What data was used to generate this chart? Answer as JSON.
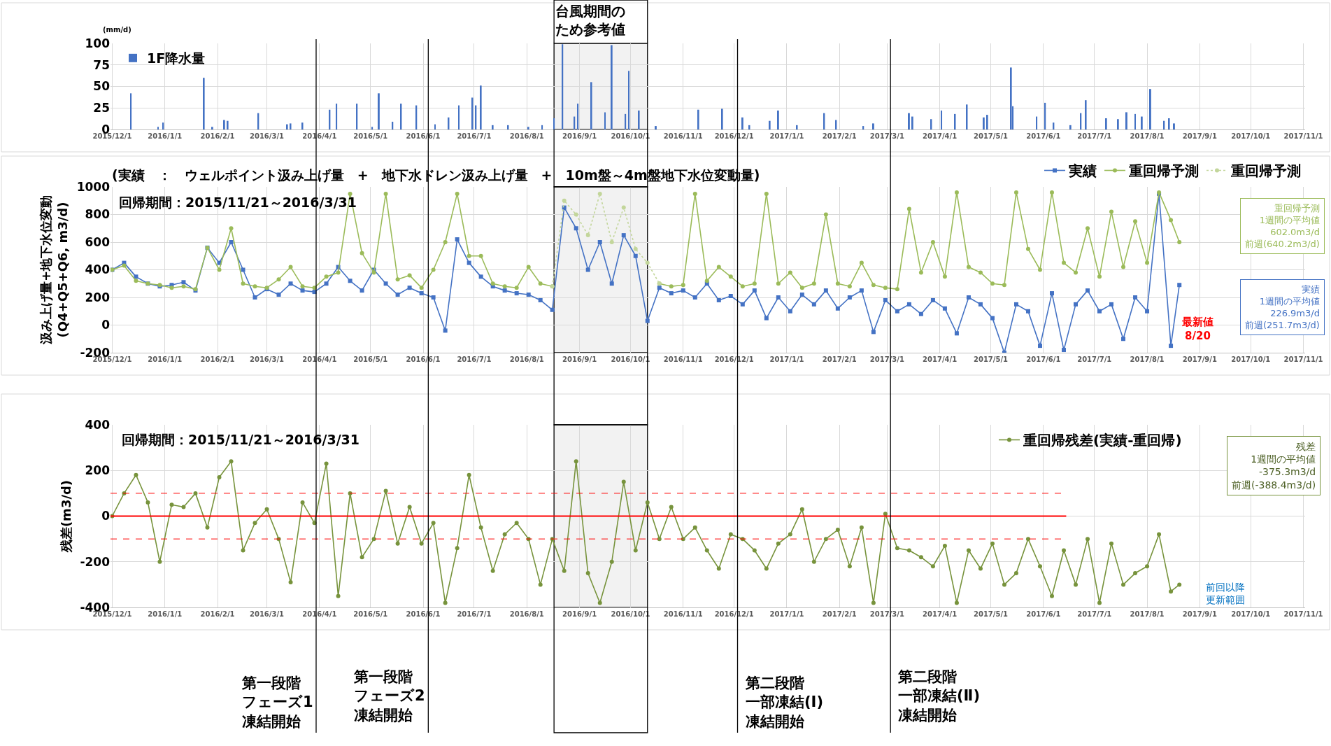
{
  "chart_data": [
    {
      "type": "bar",
      "ylabel": "(mm/d)",
      "xlim": [
        "2015-11-30",
        "2017-11-02"
      ],
      "ylim": [
        0,
        100
      ],
      "yticks": [
        0,
        25,
        50,
        75,
        100
      ],
      "grid": true,
      "legend": "top left",
      "xticks": [
        {
          "value": "2015-12-01",
          "label": "2015/12/1"
        },
        {
          "value": "2016-01-01",
          "label": "2016/1/1"
        },
        {
          "value": "2016-02-01",
          "label": "2016/2/1"
        },
        {
          "value": "2016-03-01",
          "label": "2016/3/1"
        },
        {
          "value": "2016-04-01",
          "label": "2016/4/1"
        },
        {
          "value": "2016-05-01",
          "label": "2016/5/1"
        },
        {
          "value": "2016-06-01",
          "label": "2016/6/1"
        },
        {
          "value": "2016-07-01",
          "label": "2016/7/1"
        },
        {
          "value": "2016-08-01",
          "label": "2016/8/1"
        },
        {
          "value": "2016-09-01",
          "label": "2016/9/1"
        },
        {
          "value": "2016-10-01",
          "label": "2016/10/1"
        },
        {
          "value": "2016-11-01",
          "label": "2016/11/1"
        },
        {
          "value": "2016-12-01",
          "label": "2016/12/1"
        },
        {
          "value": "2017-01-01",
          "label": "2017/1/1"
        },
        {
          "value": "2017-02-01",
          "label": "2017/2/1"
        },
        {
          "value": "2017-03-01",
          "label": "2017/3/1"
        },
        {
          "value": "2017-04-01",
          "label": "2017/4/1"
        },
        {
          "value": "2017-05-01",
          "label": "2017/5/1"
        },
        {
          "value": "2017-06-01",
          "label": "2017/6/1"
        },
        {
          "value": "2017-07-01",
          "label": "2017/7/1"
        },
        {
          "value": "2017-08-01",
          "label": "2017/8/1"
        },
        {
          "value": "2017-09-01",
          "label": "2017/9/1"
        },
        {
          "value": "2017-10-01",
          "label": "2017/10/1"
        },
        {
          "value": "2017-11-01",
          "label": "2017/11/1"
        }
      ],
      "series": [
        {
          "name": "1F降水量",
          "color": "#4472c4",
          "x": [
            "2015-12-12",
            "2015-12-28",
            "2015-12-31",
            "2016-01-24",
            "2016-01-29",
            "2016-02-05",
            "2016-02-07",
            "2016-02-25",
            "2016-03-13",
            "2016-03-15",
            "2016-03-22",
            "2016-04-07",
            "2016-04-11",
            "2016-04-23",
            "2016-05-02",
            "2016-05-06",
            "2016-05-14",
            "2016-05-19",
            "2016-05-28",
            "2016-06-08",
            "2016-06-16",
            "2016-06-22",
            "2016-06-30",
            "2016-07-02",
            "2016-07-05",
            "2016-07-12",
            "2016-07-21",
            "2016-08-02",
            "2016-08-10",
            "2016-08-17",
            "2016-08-22",
            "2016-08-29",
            "2016-08-31",
            "2016-09-08",
            "2016-09-16",
            "2016-09-20",
            "2016-09-28",
            "2016-09-30",
            "2016-10-06",
            "2016-10-16",
            "2016-11-10",
            "2016-11-24",
            "2016-12-06",
            "2016-12-10",
            "2016-12-22",
            "2016-12-27",
            "2017-01-07",
            "2017-01-23",
            "2017-01-30",
            "2017-02-15",
            "2017-02-21",
            "2017-03-14",
            "2017-03-16",
            "2017-03-27",
            "2017-04-02",
            "2017-04-10",
            "2017-04-17",
            "2017-04-27",
            "2017-04-29",
            "2017-05-13",
            "2017-05-14",
            "2017-05-28",
            "2017-06-02",
            "2017-06-07",
            "2017-06-17",
            "2017-06-23",
            "2017-06-26",
            "2017-07-08",
            "2017-07-15",
            "2017-07-20",
            "2017-07-25",
            "2017-07-29",
            "2017-08-03",
            "2017-08-11",
            "2017-08-14",
            "2017-08-17"
          ],
          "values": [
            42,
            3,
            8,
            60,
            3,
            11,
            10,
            19,
            6,
            7,
            8,
            23,
            30,
            30,
            3,
            42,
            9,
            30,
            28,
            6,
            14,
            28,
            37,
            28,
            51,
            5,
            5,
            3,
            5,
            13,
            99,
            15,
            30,
            55,
            20,
            98,
            18,
            68,
            22,
            4,
            23,
            24,
            14,
            5,
            10,
            22,
            5,
            19,
            11,
            4,
            7,
            19,
            15,
            12,
            22,
            18,
            29,
            14,
            17,
            72,
            27,
            15,
            31,
            8,
            5,
            19,
            34,
            13,
            12,
            20,
            18,
            15,
            47,
            10,
            13,
            7
          ]
        }
      ],
      "bands": [
        {
          "axis": "x",
          "from": "2016-08-17",
          "to": "2016-10-11",
          "label": "台風期間のため参考値",
          "color": "#000000"
        }
      ]
    },
    {
      "type": "line",
      "subtitle": "(実績　：　ウェルポイント汲み上げ量　+　地下水ドレン汲み上げ量　+　10m盤～4m盤地下水位変動量)",
      "ylabel": "汲み上げ量+地下水位変動\n(Q4+Q5+Q6, m3/d)",
      "xlim": [
        "2015-11-30",
        "2017-11-02"
      ],
      "ylim": [
        -200,
        1000
      ],
      "yticks": [
        -200,
        0,
        200,
        400,
        600,
        800,
        1000
      ],
      "grid": true,
      "legend": "top",
      "xticks": [
        {
          "value": "2015-12-01",
          "label": "2015/12/1"
        },
        {
          "value": "2016-01-01",
          "label": "2016/1/1"
        },
        {
          "value": "2016-02-01",
          "label": "2016/2/1"
        },
        {
          "value": "2016-03-01",
          "label": "2016/3/1"
        },
        {
          "value": "2016-04-01",
          "label": "2016/4/1"
        },
        {
          "value": "2016-05-01",
          "label": "2016/5/1"
        },
        {
          "value": "2016-06-01",
          "label": "2016/6/1"
        },
        {
          "value": "2016-07-01",
          "label": "2016/7/1"
        },
        {
          "value": "2016-08-01",
          "label": "2016/8/1"
        },
        {
          "value": "2016-09-01",
          "label": "2016/9/1"
        },
        {
          "value": "2016-10-01",
          "label": "2016/10/1"
        },
        {
          "value": "2016-11-01",
          "label": "2016/11/1"
        },
        {
          "value": "2016-12-01",
          "label": "2016/12/1"
        },
        {
          "value": "2017-01-01",
          "label": "2017/1/1"
        },
        {
          "value": "2017-02-01",
          "label": "2017/2/1"
        },
        {
          "value": "2017-03-01",
          "label": "2017/3/1"
        },
        {
          "value": "2017-04-01",
          "label": "2017/4/1"
        },
        {
          "value": "2017-05-01",
          "label": "2017/5/1"
        },
        {
          "value": "2017-06-01",
          "label": "2017/6/1"
        },
        {
          "value": "2017-07-01",
          "label": "2017/7/1"
        },
        {
          "value": "2017-08-01",
          "label": "2017/8/1"
        },
        {
          "value": "2017-09-01",
          "label": "2017/9/1"
        },
        {
          "value": "2017-10-01",
          "label": "2017/10/1"
        },
        {
          "value": "2017-11-01",
          "label": "2017/11/1"
        }
      ],
      "x": [
        "2015-12-01",
        "2015-12-08",
        "2015-12-15",
        "2015-12-22",
        "2015-12-29",
        "2016-01-05",
        "2016-01-12",
        "2016-01-19",
        "2016-01-26",
        "2016-02-02",
        "2016-02-09",
        "2016-02-16",
        "2016-02-23",
        "2016-03-01",
        "2016-03-08",
        "2016-03-15",
        "2016-03-22",
        "2016-03-29",
        "2016-04-05",
        "2016-04-12",
        "2016-04-19",
        "2016-04-26",
        "2016-05-03",
        "2016-05-10",
        "2016-05-17",
        "2016-05-24",
        "2016-05-31",
        "2016-06-07",
        "2016-06-14",
        "2016-06-21",
        "2016-06-28",
        "2016-07-05",
        "2016-07-12",
        "2016-07-19",
        "2016-07-26",
        "2016-08-02",
        "2016-08-09",
        "2016-08-16",
        "2016-08-23",
        "2016-08-30",
        "2016-09-06",
        "2016-09-13",
        "2016-09-20",
        "2016-09-27",
        "2016-10-04",
        "2016-10-11",
        "2016-10-18",
        "2016-10-25",
        "2016-11-01",
        "2016-11-08",
        "2016-11-15",
        "2016-11-22",
        "2016-11-29",
        "2016-12-06",
        "2016-12-13",
        "2016-12-20",
        "2016-12-27",
        "2017-01-03",
        "2017-01-10",
        "2017-01-17",
        "2017-01-24",
        "2017-01-31",
        "2017-02-07",
        "2017-02-14",
        "2017-02-21",
        "2017-02-28",
        "2017-03-07",
        "2017-03-14",
        "2017-03-21",
        "2017-03-28",
        "2017-04-04",
        "2017-04-11",
        "2017-04-18",
        "2017-04-25",
        "2017-05-02",
        "2017-05-09",
        "2017-05-16",
        "2017-05-23",
        "2017-05-30",
        "2017-06-06",
        "2017-06-13",
        "2017-06-20",
        "2017-06-27",
        "2017-07-04",
        "2017-07-11",
        "2017-07-18",
        "2017-07-25",
        "2017-08-01",
        "2017-08-08",
        "2017-08-15",
        "2017-08-20"
      ],
      "series": [
        {
          "name": "実績",
          "color": "#4472c4",
          "marker": "square",
          "values": [
            400,
            450,
            350,
            300,
            280,
            290,
            310,
            250,
            560,
            450,
            600,
            400,
            200,
            260,
            220,
            300,
            250,
            240,
            300,
            420,
            320,
            250,
            400,
            300,
            220,
            270,
            230,
            200,
            -40,
            620,
            450,
            350,
            280,
            250,
            230,
            220,
            180,
            110,
            850,
            700,
            400,
            600,
            300,
            650,
            500,
            30,
            270,
            230,
            250,
            200,
            300,
            180,
            210,
            150,
            250,
            50,
            200,
            100,
            220,
            150,
            250,
            120,
            200,
            250,
            -50,
            180,
            100,
            150,
            80,
            180,
            120,
            -60,
            200,
            150,
            50,
            -200,
            150,
            100,
            -150,
            230,
            -180,
            150,
            250,
            100,
            150,
            -100,
            200,
            100,
            950,
            -150,
            290
          ]
        },
        {
          "name": "重回帰予測",
          "color": "#9bbb59",
          "marker": "circle",
          "values": [
            400,
            430,
            320,
            300,
            290,
            270,
            280,
            260,
            560,
            400,
            700,
            300,
            280,
            270,
            330,
            420,
            280,
            270,
            350,
            380,
            950,
            520,
            380,
            950,
            330,
            360,
            270,
            400,
            600,
            950,
            500,
            500,
            300,
            280,
            270,
            420,
            300,
            280,
            null,
            null,
            null,
            null,
            null,
            null,
            null,
            null,
            300,
            280,
            290,
            950,
            320,
            420,
            350,
            280,
            300,
            950,
            300,
            380,
            270,
            300,
            800,
            300,
            280,
            450,
            290,
            270,
            260,
            840,
            380,
            600,
            350,
            960,
            420,
            380,
            300,
            290,
            960,
            550,
            400,
            960,
            450,
            380,
            700,
            350,
            820,
            420,
            750,
            450,
            960,
            760,
            600
          ]
        },
        {
          "name": "重回帰予測",
          "color": "#c3d69b",
          "marker": "circle",
          "line_style": "dotted",
          "x": [
            "2016-08-16",
            "2016-08-23",
            "2016-08-30",
            "2016-09-06",
            "2016-09-13",
            "2016-09-20",
            "2016-09-27",
            "2016-10-04",
            "2016-10-11",
            "2016-10-18"
          ],
          "values": [
            280,
            900,
            800,
            650,
            950,
            600,
            850,
            550,
            450,
            300
          ]
        }
      ],
      "annotations": [
        "回帰期間：2015/11/21～2016/3/31",
        "重回帰予測\n1週間の平均値\n602.0m3/d\n前週(640.2m3/d)",
        "実績\n1週間の平均値\n226.9m3/d\n前週(251.7m3/d)",
        "最新値\n8/20"
      ],
      "bands": [
        {
          "axis": "x",
          "from": "2016-08-17",
          "to": "2016-10-11",
          "color": "#000000"
        }
      ]
    },
    {
      "type": "line",
      "ylabel": "残差(m3/d)",
      "xlim": [
        "2015-11-30",
        "2017-11-02"
      ],
      "ylim": [
        -400,
        400
      ],
      "yticks": [
        -400,
        -200,
        0,
        200,
        400
      ],
      "grid": true,
      "legend": "top right",
      "xticks": [
        {
          "value": "2015-12-01",
          "label": "2015/12/1"
        },
        {
          "value": "2016-01-01",
          "label": "2016/1/1"
        },
        {
          "value": "2016-02-01",
          "label": "2016/2/1"
        },
        {
          "value": "2016-03-01",
          "label": "2016/3/1"
        },
        {
          "value": "2016-04-01",
          "label": "2016/4/1"
        },
        {
          "value": "2016-05-01",
          "label": "2016/5/1"
        },
        {
          "value": "2016-06-01",
          "label": "2016/6/1"
        },
        {
          "value": "2016-07-01",
          "label": "2016/7/1"
        },
        {
          "value": "2016-08-01",
          "label": "2016/8/1"
        },
        {
          "value": "2016-09-01",
          "label": "2016/9/1"
        },
        {
          "value": "2016-10-01",
          "label": "2016/10/1"
        },
        {
          "value": "2016-11-01",
          "label": "2016/11/1"
        },
        {
          "value": "2016-12-01",
          "label": "2016/12/1"
        },
        {
          "value": "2017-01-01",
          "label": "2017/1/1"
        },
        {
          "value": "2017-02-01",
          "label": "2017/2/1"
        },
        {
          "value": "2017-03-01",
          "label": "2017/3/1"
        },
        {
          "value": "2017-04-01",
          "label": "2017/4/1"
        },
        {
          "value": "2017-05-01",
          "label": "2017/5/1"
        },
        {
          "value": "2017-06-01",
          "label": "2017/6/1"
        },
        {
          "value": "2017-07-01",
          "label": "2017/7/1"
        },
        {
          "value": "2017-08-01",
          "label": "2017/8/1"
        },
        {
          "value": "2017-09-01",
          "label": "2017/9/1"
        },
        {
          "value": "2017-10-01",
          "label": "2017/10/1"
        },
        {
          "value": "2017-11-01",
          "label": "2017/11/1"
        }
      ],
      "x": [
        "2015-12-01",
        "2015-12-08",
        "2015-12-15",
        "2015-12-22",
        "2015-12-29",
        "2016-01-05",
        "2016-01-12",
        "2016-01-19",
        "2016-01-26",
        "2016-02-02",
        "2016-02-09",
        "2016-02-16",
        "2016-02-23",
        "2016-03-01",
        "2016-03-08",
        "2016-03-15",
        "2016-03-22",
        "2016-03-29",
        "2016-04-05",
        "2016-04-12",
        "2016-04-19",
        "2016-04-26",
        "2016-05-03",
        "2016-05-10",
        "2016-05-17",
        "2016-05-24",
        "2016-05-31",
        "2016-06-07",
        "2016-06-14",
        "2016-06-21",
        "2016-06-28",
        "2016-07-05",
        "2016-07-12",
        "2016-07-19",
        "2016-07-26",
        "2016-08-02",
        "2016-08-09",
        "2016-08-16",
        "2016-08-23",
        "2016-08-30",
        "2016-09-06",
        "2016-09-13",
        "2016-09-20",
        "2016-09-27",
        "2016-10-04",
        "2016-10-11",
        "2016-10-18",
        "2016-10-25",
        "2016-11-01",
        "2016-11-08",
        "2016-11-15",
        "2016-11-22",
        "2016-11-29",
        "2016-12-06",
        "2016-12-13",
        "2016-12-20",
        "2016-12-27",
        "2017-01-03",
        "2017-01-10",
        "2017-01-17",
        "2017-01-24",
        "2017-01-31",
        "2017-02-07",
        "2017-02-14",
        "2017-02-21",
        "2017-02-28",
        "2017-03-07",
        "2017-03-14",
        "2017-03-21",
        "2017-03-28",
        "2017-04-04",
        "2017-04-11",
        "2017-04-18",
        "2017-04-25",
        "2017-05-02",
        "2017-05-09",
        "2017-05-16",
        "2017-05-23",
        "2017-05-30",
        "2017-06-06",
        "2017-06-13",
        "2017-06-20",
        "2017-06-27",
        "2017-07-04",
        "2017-07-11",
        "2017-07-18",
        "2017-07-25",
        "2017-08-01",
        "2017-08-08",
        "2017-08-15",
        "2017-08-20"
      ],
      "series": [
        {
          "name": "重回帰残差(実績-重回帰)",
          "color": "#77933c",
          "marker": "circle",
          "values": [
            0,
            100,
            180,
            60,
            -200,
            50,
            40,
            100,
            -50,
            170,
            240,
            -150,
            -30,
            30,
            -100,
            -290,
            60,
            -30,
            230,
            -350,
            100,
            -180,
            -100,
            110,
            -120,
            40,
            -120,
            -30,
            -380,
            -140,
            180,
            -50,
            -240,
            -80,
            -30,
            -100,
            -300,
            -100,
            -240,
            240,
            -250,
            -380,
            -200,
            150,
            -150,
            60,
            -100,
            40,
            -100,
            -50,
            -150,
            -230,
            -80,
            -100,
            -150,
            -230,
            -120,
            -80,
            30,
            -200,
            -100,
            -60,
            -220,
            -50,
            -380,
            10,
            -140,
            -150,
            -180,
            -220,
            -130,
            -380,
            -150,
            -230,
            -120,
            -300,
            -250,
            -100,
            -220,
            -350,
            -150,
            -300,
            -100,
            -380,
            -120,
            -300,
            -250,
            -220,
            -80,
            -330,
            -300
          ]
        }
      ],
      "annotations": [
        "回帰期間：2015/11/21～2016/3/31",
        "残差\n1週間の平均値\n-375.3m3/d\n前週(-388.4m3/d)",
        "前回以降更新範囲"
      ],
      "ref_lines": [
        {
          "axis": "y",
          "value": 0,
          "color": "#ff0000"
        },
        {
          "axis": "y",
          "value": 100,
          "color": "#ff0000",
          "line_style": "dashed"
        },
        {
          "axis": "y",
          "value": -100,
          "color": "#ff0000",
          "line_style": "dashed"
        },
        {
          "axis": "x",
          "value": "2016-03-30",
          "label": "第一段階フェーズ1凍結開始",
          "color": "#000000"
        },
        {
          "axis": "x",
          "value": "2016-06-04",
          "label": "第一段階フェーズ2凍結開始",
          "color": "#000000"
        },
        {
          "axis": "x",
          "value": "2016-12-03",
          "label": "第二段階一部凍結(Ⅰ)凍結開始",
          "color": "#000000"
        },
        {
          "axis": "x",
          "value": "2017-03-03",
          "label": "第二段階一部凍結(Ⅱ)凍結開始",
          "color": "#000000"
        }
      ],
      "bands": [
        {
          "axis": "x",
          "from": "2016-08-17",
          "to": "2016-10-11",
          "color": "#000000"
        }
      ]
    }
  ]
}
